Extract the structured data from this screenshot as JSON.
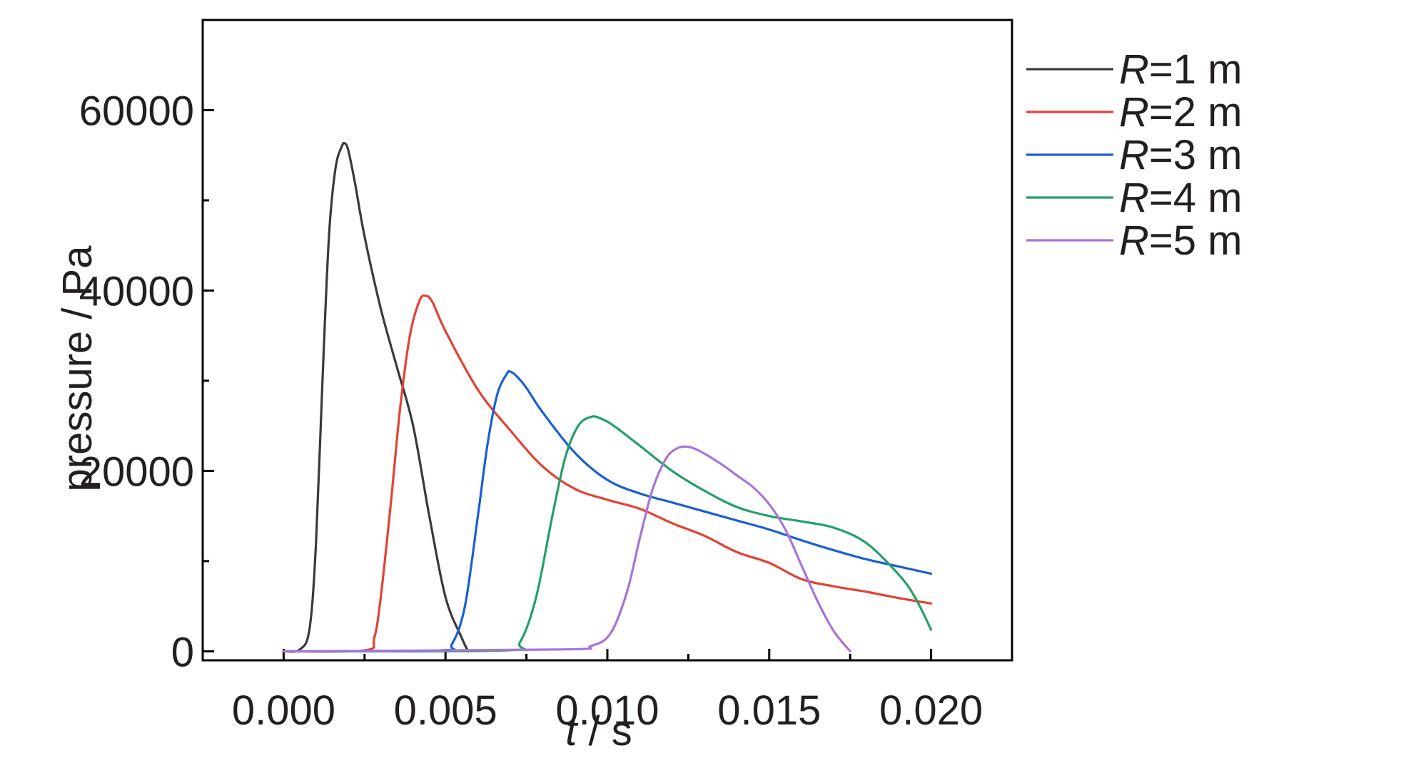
{
  "chart_data": {
    "type": "line",
    "xlabel_var": "t",
    "xlabel_unit": " / s",
    "ylabel": "pressure / Pa",
    "xlim": [
      -0.0025,
      0.0225
    ],
    "ylim": [
      -1000,
      70000
    ],
    "x_ticks": [
      0.0,
      0.005,
      0.01,
      0.015,
      0.02
    ],
    "x_tick_labels": [
      "0.000",
      "0.005",
      "0.010",
      "0.015",
      "0.020"
    ],
    "x_minor_ticks": [
      0.0025,
      0.0075,
      0.0125,
      0.0175
    ],
    "y_ticks": [
      0,
      20000,
      40000,
      60000
    ],
    "y_tick_labels": [
      "0",
      "20000",
      "40000",
      "60000"
    ],
    "y_minor_ticks": [
      10000,
      30000,
      50000
    ],
    "grid": false,
    "legend_position": "top-right",
    "series": [
      {
        "var": "R",
        "name": "=1 m",
        "color": "#3a3a3a",
        "points": [
          [
            0,
            0
          ],
          [
            0.0005,
            200
          ],
          [
            0.0008,
            2500
          ],
          [
            0.001,
            12000
          ],
          [
            0.0012,
            30000
          ],
          [
            0.0014,
            46000
          ],
          [
            0.0016,
            53500
          ],
          [
            0.0018,
            56000
          ],
          [
            0.0019,
            56300
          ],
          [
            0.002,
            55500
          ],
          [
            0.0022,
            52000
          ],
          [
            0.0025,
            46000
          ],
          [
            0.003,
            38000
          ],
          [
            0.0035,
            31500
          ],
          [
            0.004,
            25000
          ],
          [
            0.0045,
            15000
          ],
          [
            0.005,
            6000
          ],
          [
            0.0055,
            1500
          ],
          [
            0.0057,
            0
          ]
        ]
      },
      {
        "var": "R",
        "name": "=2 m",
        "color": "#e34234",
        "points": [
          [
            0,
            0
          ],
          [
            0.0025,
            100
          ],
          [
            0.0028,
            1500
          ],
          [
            0.003,
            6000
          ],
          [
            0.0033,
            16000
          ],
          [
            0.0036,
            27000
          ],
          [
            0.0039,
            35000
          ],
          [
            0.0042,
            38900
          ],
          [
            0.0044,
            39400
          ],
          [
            0.0046,
            38700
          ],
          [
            0.005,
            35500
          ],
          [
            0.006,
            29000
          ],
          [
            0.007,
            24500
          ],
          [
            0.008,
            20500
          ],
          [
            0.009,
            18000
          ],
          [
            0.01,
            16800
          ],
          [
            0.011,
            15800
          ],
          [
            0.012,
            14200
          ],
          [
            0.013,
            12800
          ],
          [
            0.014,
            11000
          ],
          [
            0.015,
            9800
          ],
          [
            0.016,
            8000
          ],
          [
            0.017,
            7200
          ],
          [
            0.018,
            6600
          ],
          [
            0.019,
            5900
          ],
          [
            0.02,
            5300
          ]
        ]
      },
      {
        "var": "R",
        "name": "=3 m",
        "color": "#1a5fd4",
        "points": [
          [
            0,
            0
          ],
          [
            0.0048,
            100
          ],
          [
            0.0052,
            800
          ],
          [
            0.0056,
            5000
          ],
          [
            0.006,
            15000
          ],
          [
            0.0063,
            23000
          ],
          [
            0.0066,
            28500
          ],
          [
            0.0069,
            30800
          ],
          [
            0.007,
            31000
          ],
          [
            0.0072,
            30500
          ],
          [
            0.0075,
            29200
          ],
          [
            0.008,
            26500
          ],
          [
            0.009,
            22000
          ],
          [
            0.01,
            19000
          ],
          [
            0.011,
            17500
          ],
          [
            0.012,
            16500
          ],
          [
            0.013,
            15500
          ],
          [
            0.014,
            14500
          ],
          [
            0.015,
            13500
          ],
          [
            0.016,
            12300
          ],
          [
            0.017,
            11200
          ],
          [
            0.018,
            10200
          ],
          [
            0.019,
            9400
          ],
          [
            0.02,
            8600
          ]
        ]
      },
      {
        "var": "R",
        "name": "=4 m",
        "color": "#23a068",
        "points": [
          [
            0,
            0
          ],
          [
            0.0068,
            100
          ],
          [
            0.0073,
            1000
          ],
          [
            0.0078,
            6000
          ],
          [
            0.0083,
            15000
          ],
          [
            0.0087,
            21500
          ],
          [
            0.0091,
            25000
          ],
          [
            0.0095,
            26000
          ],
          [
            0.0098,
            25800
          ],
          [
            0.0102,
            25000
          ],
          [
            0.011,
            22800
          ],
          [
            0.012,
            20000
          ],
          [
            0.013,
            17800
          ],
          [
            0.014,
            16000
          ],
          [
            0.015,
            15000
          ],
          [
            0.016,
            14400
          ],
          [
            0.017,
            13700
          ],
          [
            0.018,
            12000
          ],
          [
            0.019,
            8500
          ],
          [
            0.0195,
            6000
          ],
          [
            0.02,
            2400
          ]
        ]
      },
      {
        "var": "R",
        "name": "=5 m",
        "color": "#a874d8",
        "points": [
          [
            0,
            0
          ],
          [
            0.0085,
            200
          ],
          [
            0.0095,
            600
          ],
          [
            0.0101,
            2000
          ],
          [
            0.0106,
            6500
          ],
          [
            0.011,
            12500
          ],
          [
            0.0114,
            18000
          ],
          [
            0.0118,
            21300
          ],
          [
            0.0121,
            22400
          ],
          [
            0.0124,
            22700
          ],
          [
            0.0128,
            22300
          ],
          [
            0.0135,
            20800
          ],
          [
            0.014,
            19500
          ],
          [
            0.0145,
            18200
          ],
          [
            0.015,
            16300
          ],
          [
            0.0155,
            13500
          ],
          [
            0.016,
            9500
          ],
          [
            0.0165,
            5500
          ],
          [
            0.017,
            2200
          ],
          [
            0.0175,
            0
          ]
        ]
      }
    ]
  }
}
